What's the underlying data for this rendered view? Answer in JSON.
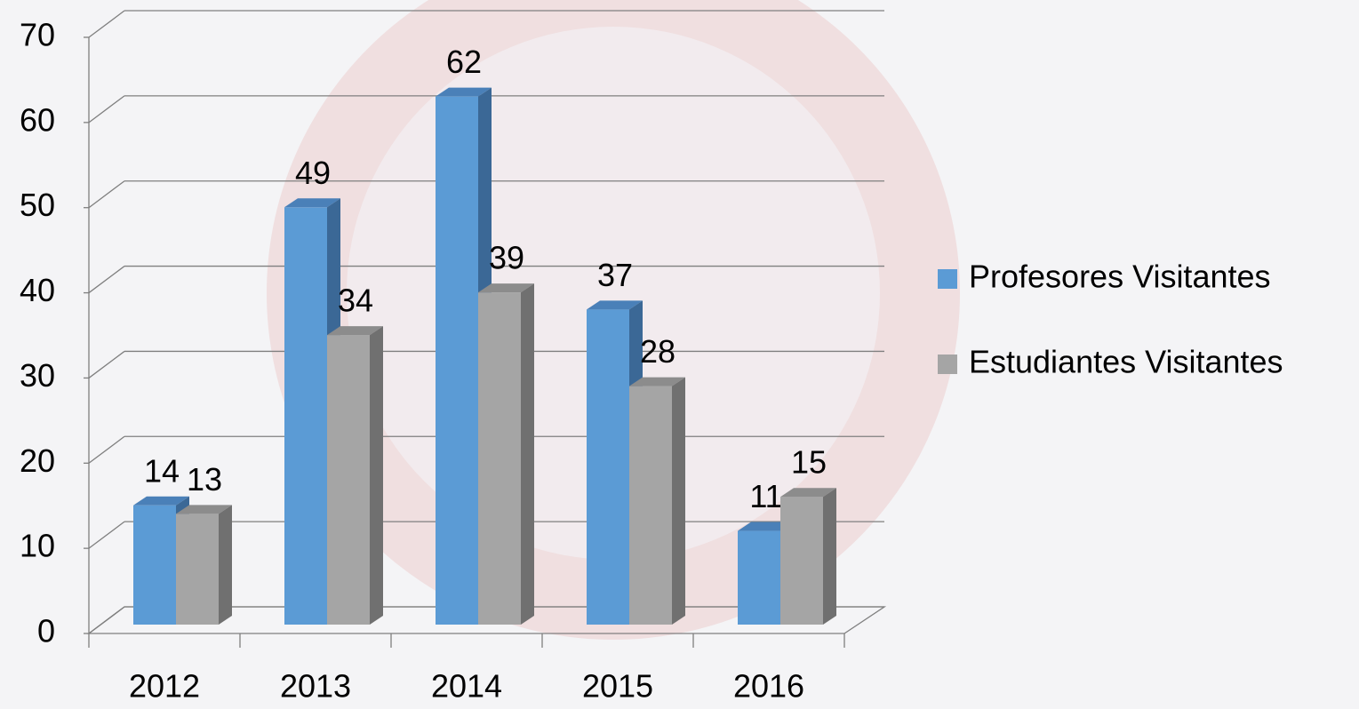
{
  "chart_data": {
    "type": "bar3d",
    "categories": [
      "2012",
      "2013",
      "2014",
      "2015",
      "2016"
    ],
    "series": [
      {
        "name": "Profesores Visitantes",
        "color": "#5b9bd5",
        "values": [
          14,
          49,
          62,
          37,
          11
        ]
      },
      {
        "name": "Estudiantes Visitantes",
        "color": "#a5a5a5",
        "values": [
          13,
          34,
          39,
          28,
          15
        ]
      }
    ],
    "ylim": [
      0,
      70
    ],
    "yticks": [
      0,
      10,
      20,
      30,
      40,
      50,
      60,
      70
    ],
    "grid": true,
    "legend": "right"
  }
}
